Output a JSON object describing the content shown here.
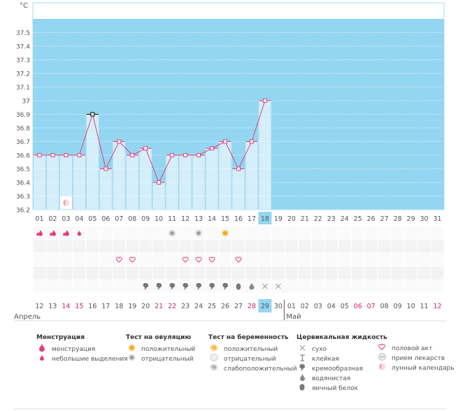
{
  "chart_data": {
    "type": "line",
    "ylabel": "°C",
    "ylim": [
      36.2,
      37.6
    ],
    "yticks": [
      "36.2",
      "36.3",
      "36.4",
      "36.5",
      "36.6",
      "36.7",
      "36.8",
      "36.9",
      "37",
      "37.1",
      "37.2",
      "37.3",
      "37.4",
      "37.5"
    ],
    "cycle_days": [
      "01",
      "02",
      "03",
      "04",
      "05",
      "06",
      "07",
      "08",
      "09",
      "10",
      "11",
      "12",
      "13",
      "14",
      "15",
      "16",
      "17",
      "18",
      "19",
      "20",
      "21",
      "22",
      "23",
      "24",
      "25",
      "26",
      "27",
      "28",
      "29",
      "30",
      "31"
    ],
    "current_cycle_day": "18",
    "series": [
      {
        "values": [
          36.6,
          36.6,
          36.6,
          36.6,
          36.9,
          36.5,
          36.7,
          36.6,
          36.65,
          36.4,
          36.6,
          36.6,
          36.6,
          36.65,
          36.7,
          36.5,
          36.7,
          37.0
        ]
      }
    ],
    "highlight_point_index": 4,
    "calendar_dates": [
      "12",
      "13",
      "14",
      "15",
      "16",
      "17",
      "18",
      "19",
      "20",
      "21",
      "22",
      "23",
      "24",
      "25",
      "26",
      "27",
      "28",
      "29",
      "30",
      "01",
      "02",
      "03",
      "04",
      "05",
      "06",
      "07",
      "08",
      "09",
      "10",
      "11",
      "12"
    ],
    "weekend_indices": [
      2,
      3,
      9,
      10,
      16,
      24,
      25,
      30
    ],
    "today_index": 17,
    "month_start": "Апрель",
    "month_next": "Май",
    "month_next_index": 19,
    "markers": {
      "menstruation": [
        "menstruation",
        "menstruation",
        "menstruation",
        "spotting"
      ],
      "ovulation_test": {
        "10": "negative",
        "12": "negative",
        "14": "positive"
      },
      "intercourse": [
        6,
        7,
        11,
        12,
        13,
        15
      ],
      "moon_index": 2,
      "cervical": {
        "8": "creamy",
        "9": "creamy",
        "10": "creamy",
        "11": "creamy",
        "12": "creamy",
        "13": "creamy",
        "14": "creamy",
        "15": "eggwhite",
        "16": "watery",
        "17": "dry",
        "18": "dry"
      }
    },
    "colors": {
      "plot_bg": "#94d6f2",
      "bar_fill": "#d4eefa",
      "bar_border": "#a6dbf0",
      "line": "#e0407a",
      "marker": "#e0407a",
      "highlight": "#000000",
      "weekend": "#d3245a",
      "today_bg": "#94d6f2",
      "grid": "#ffffff"
    }
  },
  "legend": {
    "menstruation": {
      "title": "Менструация",
      "items": [
        "менструация",
        "небольшие выделения"
      ]
    },
    "ovulation": {
      "title": "Тест на овуляцию",
      "items": [
        "положительный",
        "отрицательный"
      ]
    },
    "pregnancy": {
      "title": "Тест на беременность",
      "items": [
        "положительный",
        "отрицательный",
        "слабоположительный"
      ]
    },
    "cervical": {
      "title": "Цервикальная жидкость",
      "items": [
        "сухо",
        "клейкая",
        "кремообразная",
        "водянистая",
        "яичный белок"
      ]
    },
    "other": {
      "items": [
        "половой акт",
        "прием лекарств",
        "лунный календарь"
      ]
    },
    "icons": {
      "menstruation": "drop-icon",
      "spotting": "small-drop-icon",
      "ov_positive": "sun-icon",
      "ov_negative": "gray-circle-icon",
      "preg_positive": "swirl-icon",
      "preg_negative": "empty-swirl-icon",
      "preg_weak": "half-swirl-icon",
      "dry": "cross-icon",
      "sticky": "t-bar-icon",
      "creamy": "comma-icon",
      "watery": "watery-drop-icon",
      "eggwhite": "egg-icon",
      "intercourse": "heart-icon",
      "medication": "pill-icon",
      "lunar": "moon-icon"
    }
  }
}
